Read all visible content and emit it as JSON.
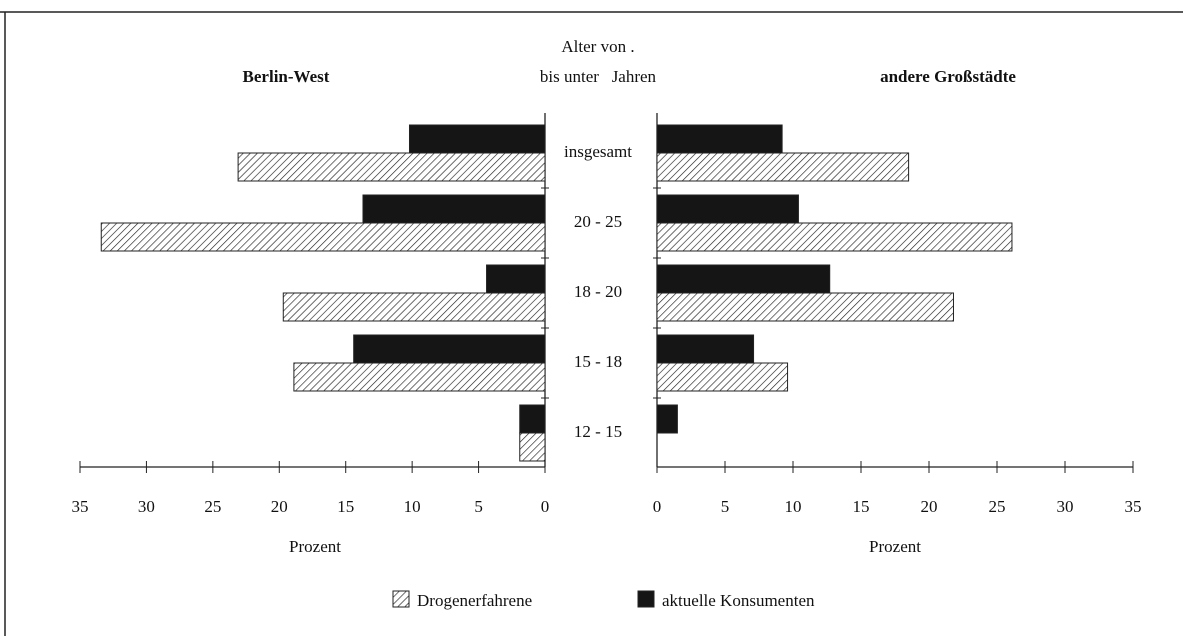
{
  "chart_data": {
    "type": "bar",
    "orientation": "horizontal",
    "category_title": [
      "Alter von .",
      "bis unter   Jahren"
    ],
    "categories": [
      "insgesamt",
      "20 - 25",
      "18 - 20",
      "15 - 18",
      "12 - 15"
    ],
    "series": [
      {
        "name": "Drogenerfahrene",
        "color": "#ffffff",
        "pattern": "hatch"
      },
      {
        "name": "aktuelle Konsumenten",
        "color": "#151515"
      }
    ],
    "panels": [
      {
        "title": "Berlin-West",
        "direction": "left",
        "xlabel": "Prozent",
        "xlim": [
          0,
          35
        ],
        "xticks": [
          0,
          5,
          10,
          15,
          20,
          25,
          30,
          35
        ],
        "values": [
          [
            23.1,
            33.4,
            19.7,
            18.9,
            1.9
          ],
          [
            10.2,
            13.7,
            4.4,
            14.4,
            1.9
          ]
        ]
      },
      {
        "title": "andere Großstädte",
        "direction": "right",
        "xlabel": "Prozent",
        "xlim": [
          0,
          35
        ],
        "xticks": [
          0,
          5,
          10,
          15,
          20,
          25,
          30,
          35
        ],
        "values": [
          [
            18.5,
            26.1,
            21.8,
            9.6,
            0
          ],
          [
            9.2,
            10.4,
            12.7,
            7.1,
            1.5
          ]
        ]
      }
    ]
  }
}
